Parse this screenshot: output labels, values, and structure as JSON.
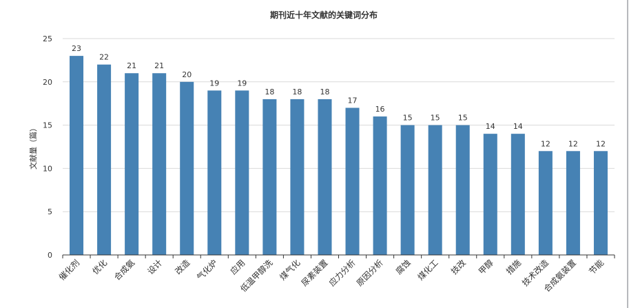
{
  "chart_data": {
    "type": "bar",
    "title": "期刊近十年文献的关键词分布",
    "xlabel": "",
    "ylabel": "文献量（篇）",
    "ylim": [
      0,
      25
    ],
    "yticks": [
      0,
      5,
      10,
      15,
      20,
      25
    ],
    "categories": [
      "催化剂",
      "优化",
      "合成氨",
      "设计",
      "改造",
      "气化炉",
      "应用",
      "低温甲醇洗",
      "煤气化",
      "尿素装置",
      "应力分析",
      "原因分析",
      "腐蚀",
      "煤化工",
      "技改",
      "甲醇",
      "措施",
      "技术改造",
      "合成氨装置",
      "节能"
    ],
    "values": [
      23,
      22,
      21,
      21,
      20,
      19,
      19,
      18,
      18,
      18,
      17,
      16,
      15,
      15,
      15,
      14,
      14,
      12,
      12,
      12
    ],
    "bar_color": "#4682b4",
    "grid": true,
    "legend": "none"
  }
}
